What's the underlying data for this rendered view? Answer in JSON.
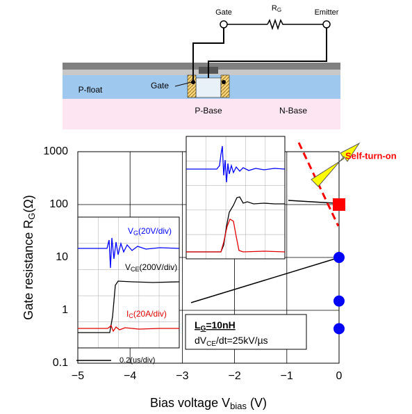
{
  "diagram": {
    "gate_terminal": "Gate",
    "resistor": {
      "main": "R",
      "sub": "G"
    },
    "emitter_terminal": "Emitter",
    "p_float": "P-float",
    "gate": "Gate",
    "p_base": "P-Base",
    "n_base": "N-Base"
  },
  "chart_data": {
    "type": "scatter",
    "x_label": {
      "main": "Bias voltage V",
      "sub": "bias",
      "tail": " (V)"
    },
    "y_label": {
      "main": "Gate resistance R",
      "sub": "G",
      "tail": "(Ω)"
    },
    "xlim": [
      -5,
      0
    ],
    "ylim": [
      0.1,
      1000
    ],
    "yscale": "log",
    "grid": true,
    "xticks": [
      {
        "value": -5,
        "label": "−5"
      },
      {
        "value": -4,
        "label": "−4"
      },
      {
        "value": -3,
        "label": "−3"
      },
      {
        "value": -2,
        "label": "−2"
      },
      {
        "value": -1,
        "label": "−1"
      },
      0
    ],
    "yticks": [
      0.1,
      1,
      10,
      100,
      1000
    ],
    "series": [
      {
        "color": "#0000ff",
        "marker": "circle",
        "x": [
          0,
          0,
          0
        ],
        "values": [
          0.45,
          1.5,
          10
        ]
      },
      {
        "color": "#ff0000",
        "marker": "square",
        "x": [
          0
        ],
        "values": [
          100
        ]
      }
    ],
    "annotations": {
      "self_turn_on": "Self-turn-on",
      "inductance": {
        "main": "L",
        "sub": "G",
        "tail": "=10nH"
      },
      "slew": {
        "main": "dV",
        "sub": "CE",
        "tail": "/dt=25kV/µs"
      },
      "vg": {
        "main": "V",
        "sub": "G",
        "tail": "(20V/div)"
      },
      "vce": {
        "main": "V",
        "sub": "CE",
        "tail": "(200V/div)"
      },
      "ic": {
        "main": "I",
        "sub": "C",
        "tail": "(20A/div)"
      },
      "time_scale": "0.2(us/div)"
    }
  }
}
